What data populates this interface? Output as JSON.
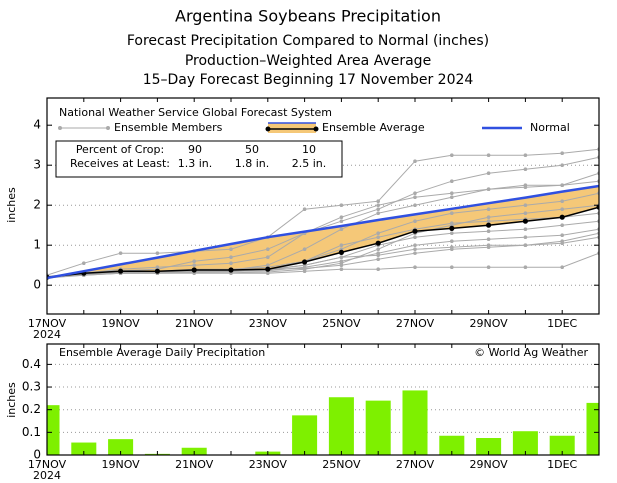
{
  "chart_data": [
    {
      "type": "line",
      "title": "Argentina Soybeans Precipitation",
      "subtitles": [
        "Forecast Precipitation Compared to Normal (inches)",
        "Production–Weighted Area Average",
        "15–Day Forecast Beginning 17 November 2024"
      ],
      "source_label": "National Weather Service Global Forecast System",
      "ylabel": "inches",
      "year_label": "2024",
      "categories": [
        "17NOV",
        null,
        "19NOV",
        null,
        "21NOV",
        null,
        "23NOV",
        null,
        "25NOV",
        null,
        "27NOV",
        null,
        "29NOV",
        null,
        "1DEC",
        null
      ],
      "ylim": [
        -0.72,
        4.68
      ],
      "yticks": [
        0,
        1,
        2,
        3,
        4
      ],
      "grid": true,
      "fill_color": "#f5c878",
      "table": {
        "rows": [
          [
            "Percent of Crop:",
            "90",
            "50",
            "10"
          ],
          [
            "Receives at Least:",
            "1.3 in.",
            "1.8 in.",
            "2.5 in."
          ]
        ]
      },
      "series": [
        {
          "name": "Ensemble Members",
          "color": "#aaaaaa",
          "members": [
            [
              0.2,
              0.3,
              0.35,
              0.35,
              0.4,
              0.4,
              0.45,
              0.6,
              0.9,
              1.3,
              1.6,
              1.8,
              1.9,
              2.0,
              2.1,
              2.3
            ],
            [
              0.25,
              0.55,
              0.8,
              0.8,
              0.85,
              0.9,
              1.2,
              1.9,
              2.0,
              2.1,
              3.1,
              3.25,
              3.25,
              3.25,
              3.3,
              3.4
            ],
            [
              0.2,
              0.3,
              0.3,
              0.3,
              0.3,
              0.3,
              0.3,
              0.35,
              0.4,
              0.4,
              0.45,
              0.45,
              0.45,
              0.45,
              0.45,
              0.8
            ],
            [
              0.2,
              0.25,
              0.3,
              0.3,
              0.35,
              0.35,
              0.4,
              0.5,
              0.7,
              1.0,
              1.2,
              1.3,
              1.35,
              1.4,
              1.5,
              1.6
            ],
            [
              0.22,
              0.3,
              0.4,
              0.45,
              0.5,
              0.55,
              0.7,
              1.3,
              1.6,
              1.9,
              2.3,
              2.6,
              2.8,
              2.9,
              3.0,
              3.2
            ],
            [
              0.2,
              0.28,
              0.33,
              0.33,
              0.35,
              0.35,
              0.36,
              0.45,
              0.6,
              0.8,
              1.0,
              1.1,
              1.15,
              1.2,
              1.25,
              1.4
            ],
            [
              0.18,
              0.25,
              0.3,
              0.32,
              0.35,
              0.38,
              0.5,
              0.9,
              1.4,
              1.8,
              2.0,
              2.2,
              2.4,
              2.45,
              2.5,
              2.8
            ],
            [
              0.2,
              0.3,
              0.35,
              0.35,
              0.38,
              0.38,
              0.4,
              0.42,
              0.5,
              0.65,
              0.8,
              0.9,
              0.95,
              1.0,
              1.05,
              1.2
            ],
            [
              0.21,
              0.32,
              0.36,
              0.4,
              0.6,
              0.7,
              0.9,
              1.3,
              1.7,
              2.0,
              2.2,
              2.3,
              2.4,
              2.5,
              2.5,
              2.6
            ],
            [
              0.19,
              0.26,
              0.3,
              0.3,
              0.31,
              0.31,
              0.33,
              0.4,
              0.55,
              0.9,
              1.3,
              1.5,
              1.7,
              1.8,
              1.9,
              2.0
            ],
            [
              0.2,
              0.3,
              0.33,
              0.35,
              0.36,
              0.37,
              0.4,
              0.6,
              1.0,
              1.2,
              1.4,
              1.55,
              1.6,
              1.65,
              1.7,
              1.8
            ],
            [
              0.2,
              0.27,
              0.3,
              0.31,
              0.33,
              0.34,
              0.38,
              0.5,
              0.7,
              0.75,
              0.9,
              0.95,
              1.0,
              1.0,
              1.1,
              1.3
            ]
          ]
        },
        {
          "name": "Ensemble Average",
          "color": "#000000",
          "values": [
            0.2,
            0.3,
            0.35,
            0.35,
            0.38,
            0.38,
            0.4,
            0.58,
            0.82,
            1.05,
            1.35,
            1.42,
            1.5,
            1.6,
            1.7,
            1.95
          ]
        },
        {
          "name": "Normal",
          "color": "#3050e0",
          "values": [
            0.18,
            0.35,
            0.52,
            0.69,
            0.86,
            1.03,
            1.2,
            1.34,
            1.48,
            1.63,
            1.77,
            1.91,
            2.05,
            2.19,
            2.34,
            2.48
          ]
        }
      ]
    },
    {
      "type": "bar",
      "title": "Ensemble Average Daily Precipitation",
      "credit": "© World Ag Weather",
      "ylabel": "inches",
      "year_label": "2024",
      "categories": [
        "17NOV",
        null,
        "19NOV",
        null,
        "21NOV",
        null,
        "23NOV",
        null,
        "25NOV",
        null,
        "27NOV",
        null,
        "29NOV",
        null,
        "1DEC",
        null
      ],
      "values": [
        0.22,
        0.055,
        0.07,
        0.005,
        0.032,
        0.002,
        0.015,
        0.175,
        0.255,
        0.24,
        0.285,
        0.085,
        0.075,
        0.105,
        0.085,
        0.23
      ],
      "color": "#7ef000",
      "ylim": [
        0,
        0.49
      ],
      "yticks": [
        0,
        0.1,
        0.2,
        0.3,
        0.4
      ],
      "grid": true
    }
  ]
}
